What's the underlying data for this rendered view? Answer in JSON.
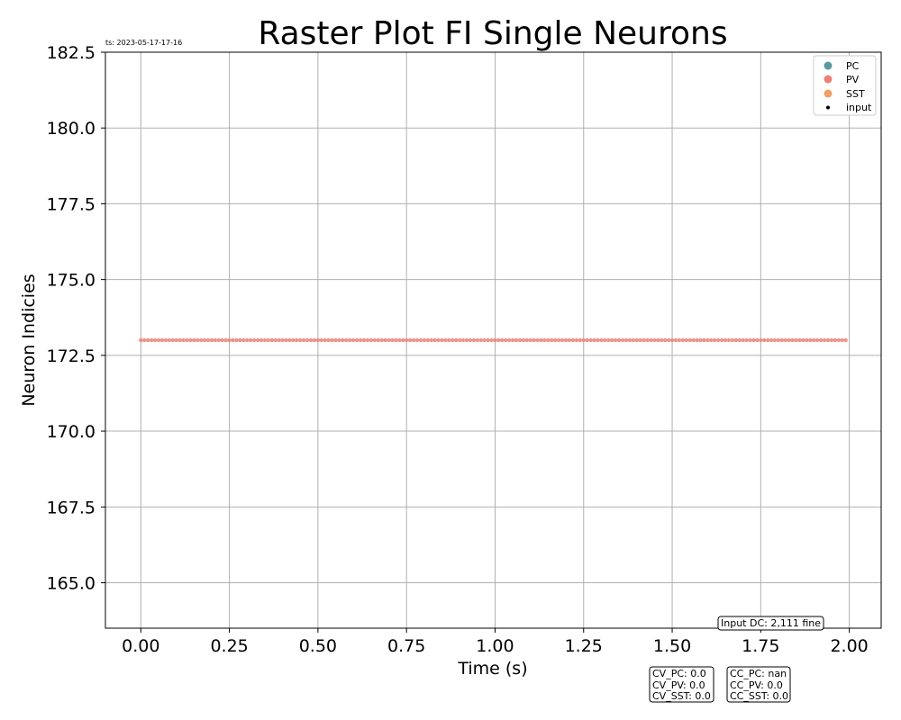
{
  "chart_data": {
    "type": "scatter",
    "title": "Raster Plot FI Single Neurons",
    "timestamp": "ts: 2023-05-17-17-16",
    "xlabel": "Time (s)",
    "ylabel": "Neuron Indicies",
    "xlim": [
      -0.1,
      2.09
    ],
    "ylim": [
      163.5,
      182.5
    ],
    "xticks": [
      0.0,
      0.25,
      0.5,
      0.75,
      1.0,
      1.25,
      1.5,
      1.75,
      2.0
    ],
    "xtick_labels": [
      "0.00",
      "0.25",
      "0.50",
      "0.75",
      "1.00",
      "1.25",
      "1.50",
      "1.75",
      "2.00"
    ],
    "yticks": [
      165.0,
      167.5,
      170.0,
      172.5,
      175.0,
      177.5,
      180.0,
      182.5
    ],
    "ytick_labels": [
      "165.0",
      "167.5",
      "170.0",
      "172.5",
      "175.0",
      "177.5",
      "180.0",
      "182.5"
    ],
    "grid": true,
    "legend_position": "top-right",
    "legend": [
      {
        "label": "PC",
        "color": "#5a9a9c",
        "marker": "circle"
      },
      {
        "label": "PV",
        "color": "#ef7f76",
        "marker": "circle"
      },
      {
        "label": "SST",
        "color": "#f0a068",
        "marker": "circle"
      },
      {
        "label": "input",
        "color": "#000000",
        "marker": "small-dot"
      }
    ],
    "series": [
      {
        "name": "PV",
        "color": "#ef7f76",
        "neuron_index": 173,
        "spike_start_s": 0.0,
        "spike_end_s": 1.99,
        "spike_interval_s": 0.01
      }
    ],
    "annotations": {
      "input_dc": "Input DC: 2,111 fine",
      "cv_lines": [
        "CV_PC: 0.0",
        "CV_PV: 0.0",
        "CV_SST: 0.0"
      ],
      "cc_lines": [
        "CC_PC: nan",
        "CC_PV: 0.0",
        "CC_SST: 0.0"
      ]
    }
  }
}
